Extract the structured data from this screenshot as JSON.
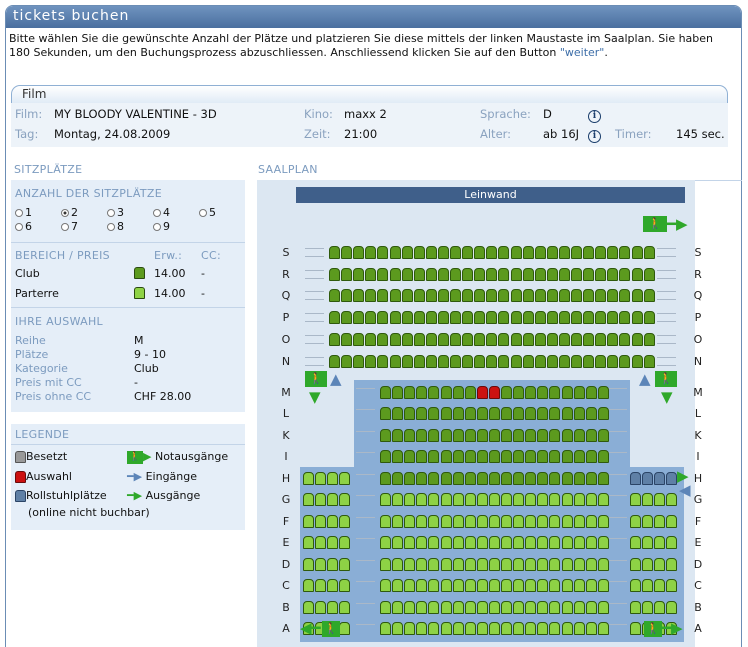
{
  "window": {
    "title": "tickets buchen"
  },
  "intro": {
    "text": "Bitte wählen Sie die gewünschte Anzahl der Plätze und platzieren Sie diese mittels der linken Maustaste im Saalplan. Sie haben 180 Sekunden, um den Buchungsprozess abzuschliessen. Anschliessend klicken Sie auf den Button ",
    "link": "\"weiter\"",
    "end": "."
  },
  "film": {
    "section": "Film",
    "film_label": "Film:",
    "film_value": "MY BLOODY VALENTINE - 3D",
    "kino_label": "Kino:",
    "kino_value": "maxx 2",
    "sprache_label": "Sprache:",
    "sprache_value": "D",
    "tag_label": "Tag:",
    "tag_value": "Montag, 24.08.2009",
    "zeit_label": "Zeit:",
    "zeit_value": "21:00",
    "alter_label": "Alter:",
    "alter_value": "ab 16J",
    "timer_label": "Timer:",
    "timer_value": "145 sec."
  },
  "sitzplaetze": {
    "heading": "SITZPLÄTZE",
    "anzahl_heading": "ANZAHL DER SITZPLÄTZE",
    "options": [
      "1",
      "2",
      "3",
      "4",
      "5",
      "6",
      "7",
      "8",
      "9"
    ],
    "selected": "2"
  },
  "bereich": {
    "heading": "BEREICH / PREIS",
    "col_erw": "Erw.:",
    "col_cc": "CC:",
    "rows": [
      {
        "name": "Club",
        "price": "14.00",
        "cc": "-",
        "color": "#5c9a1e"
      },
      {
        "name": "Parterre",
        "price": "14.00",
        "cc": "-",
        "color": "#8ed245"
      }
    ]
  },
  "auswahl": {
    "heading": "IHRE AUSWAHL",
    "rows": [
      {
        "label": "Reihe",
        "value": "M"
      },
      {
        "label": "Plätze",
        "value": "9 - 10"
      },
      {
        "label": "Kategorie",
        "value": "Club"
      },
      {
        "label": "Preis mit CC",
        "value": "-"
      },
      {
        "label": "Preis ohne CC",
        "value": "CHF 28.00"
      }
    ]
  },
  "legende": {
    "heading": "LEGENDE",
    "besetzt": "Besetzt",
    "auswahl": "Auswahl",
    "rollstuhl": "Rollstuhlplätze",
    "rollstuhl_note": "(online nicht buchbar)",
    "notausgaenge": "Notausgänge",
    "eingaenge": "Eingänge",
    "ausgaenge": "Ausgänge",
    "colors": {
      "besetzt": "#999999",
      "auswahl": "#cc1111",
      "rollstuhl": "#5f80a6",
      "exit": "#2fa82a",
      "entry": "#5c85b8"
    }
  },
  "saalplan": {
    "heading": "SAALPLAN",
    "screen": "Leinwand",
    "exit_icon": "running-man-icon",
    "rows_upper": [
      "S",
      "R",
      "Q",
      "P",
      "O",
      "N"
    ],
    "rows_lower": [
      "M",
      "L",
      "K",
      "I",
      "H",
      "G",
      "F",
      "E",
      "D",
      "C",
      "B",
      "A"
    ],
    "selected_row": "M",
    "selected_seats": [
      9,
      10
    ]
  }
}
